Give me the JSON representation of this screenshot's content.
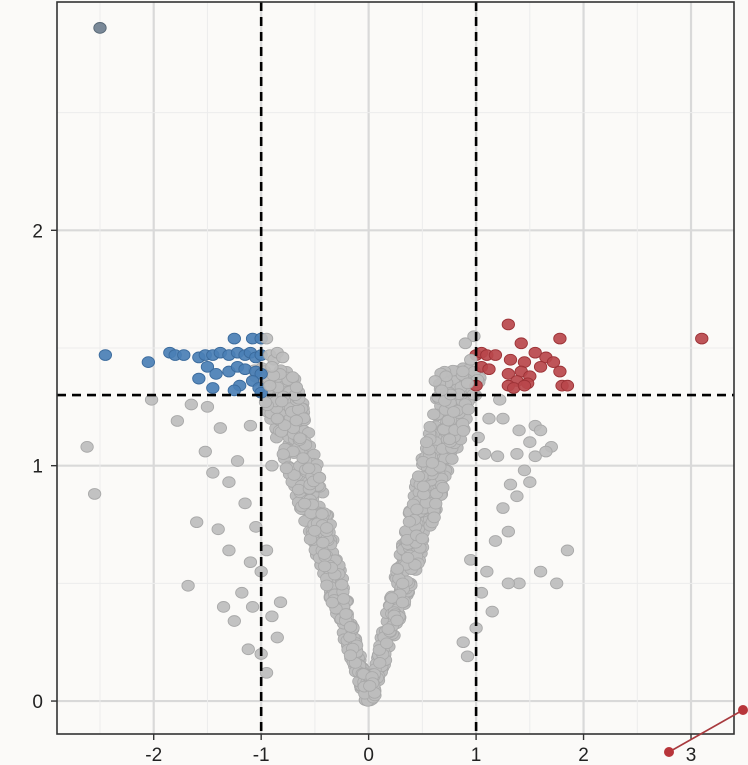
{
  "chart_data": {
    "type": "scatter",
    "title": "",
    "xlabel": "",
    "ylabel": "",
    "xlim": [
      -2.9,
      3.4
    ],
    "ylim": [
      -0.14,
      2.97
    ],
    "x_ticks": [
      -2,
      -1,
      0,
      1,
      2,
      3
    ],
    "y_ticks": [
      0,
      1,
      2
    ],
    "x_tick_labels": [
      "-2",
      "-1",
      "0",
      "1",
      "2",
      "3"
    ],
    "y_tick_labels": [
      "0",
      "1",
      "2"
    ],
    "grid": true,
    "legend": "none",
    "thresholds": {
      "fold_change": [
        -1,
        1
      ],
      "significance": 1.3
    },
    "colors": {
      "background": "#fbfaf8",
      "grid": "#d9d9d9",
      "axis": "#333333",
      "threshold_line": "#000000",
      "down": "#4a7fb5",
      "down_border": "#3a6a9c",
      "up": "#b8474b",
      "up_border": "#9c3236",
      "not_significant": "#bdbdbd",
      "not_significant_border": "#a8a8a8",
      "outlier_dark": "#6f7f8f"
    },
    "series": [
      {
        "group": "down",
        "points": [
          [
            -2.5,
            2.86
          ],
          [
            -2.45,
            1.47
          ],
          [
            -2.05,
            1.44
          ],
          [
            -1.85,
            1.48
          ],
          [
            -1.8,
            1.47
          ],
          [
            -1.72,
            1.47
          ],
          [
            -1.58,
            1.46
          ],
          [
            -1.52,
            1.47
          ],
          [
            -1.45,
            1.47
          ],
          [
            -1.38,
            1.48
          ],
          [
            -1.3,
            1.47
          ],
          [
            -1.22,
            1.48
          ],
          [
            -1.15,
            1.47
          ],
          [
            -1.1,
            1.48
          ],
          [
            -1.05,
            1.46
          ],
          [
            -1.0,
            1.47
          ],
          [
            -1.25,
            1.54
          ],
          [
            -1.08,
            1.54
          ],
          [
            -1.0,
            1.54
          ],
          [
            -1.5,
            1.42
          ],
          [
            -1.42,
            1.39
          ],
          [
            -1.3,
            1.4
          ],
          [
            -1.22,
            1.42
          ],
          [
            -1.15,
            1.41
          ],
          [
            -1.05,
            1.4
          ],
          [
            -1.0,
            1.39
          ],
          [
            -1.58,
            1.37
          ],
          [
            -1.45,
            1.33
          ],
          [
            -1.2,
            1.34
          ],
          [
            -1.08,
            1.36
          ],
          [
            -1.02,
            1.33
          ],
          [
            -1.25,
            1.32
          ],
          [
            -1.0,
            1.31
          ]
        ]
      },
      {
        "group": "up",
        "points": [
          [
            3.1,
            1.54
          ],
          [
            1.3,
            1.6
          ],
          [
            1.42,
            1.52
          ],
          [
            1.78,
            1.54
          ],
          [
            1.0,
            1.47
          ],
          [
            1.05,
            1.48
          ],
          [
            1.1,
            1.47
          ],
          [
            1.18,
            1.47
          ],
          [
            1.32,
            1.45
          ],
          [
            1.45,
            1.44
          ],
          [
            1.55,
            1.48
          ],
          [
            1.65,
            1.46
          ],
          [
            1.6,
            1.42
          ],
          [
            1.72,
            1.44
          ],
          [
            1.05,
            1.42
          ],
          [
            1.12,
            1.41
          ],
          [
            1.3,
            1.39
          ],
          [
            1.42,
            1.4
          ],
          [
            1.5,
            1.38
          ],
          [
            1.38,
            1.36
          ],
          [
            1.48,
            1.35
          ],
          [
            1.3,
            1.34
          ],
          [
            1.35,
            1.33
          ],
          [
            1.78,
            1.4
          ],
          [
            1.8,
            1.34
          ],
          [
            1.85,
            1.34
          ],
          [
            1.0,
            1.34
          ],
          [
            1.45,
            1.34
          ]
        ]
      },
      {
        "group": "not_significant",
        "points": [
          [
            -2.62,
            1.08
          ],
          [
            -2.55,
            0.88
          ],
          [
            -2.02,
            1.28
          ],
          [
            -1.68,
            0.49
          ],
          [
            -1.65,
            1.26
          ],
          [
            -1.78,
            1.19
          ],
          [
            -1.52,
            1.06
          ],
          [
            -1.6,
            0.76
          ],
          [
            -1.4,
            0.73
          ],
          [
            -1.3,
            0.64
          ],
          [
            -1.35,
            0.4
          ],
          [
            -1.25,
            0.34
          ],
          [
            -1.45,
            0.97
          ],
          [
            -1.38,
            1.16
          ],
          [
            -1.5,
            1.25
          ],
          [
            -1.3,
            0.93
          ],
          [
            -1.15,
            0.84
          ],
          [
            -1.1,
            0.59
          ],
          [
            -1.08,
            0.4
          ],
          [
            -1.18,
            0.46
          ],
          [
            -1.22,
            1.02
          ],
          [
            -1.1,
            1.17
          ],
          [
            -1.05,
            0.74
          ],
          [
            -1.0,
            0.55
          ],
          [
            -1.0,
            0.2
          ],
          [
            -0.95,
            0.64
          ],
          [
            -0.9,
            0.36
          ],
          [
            -0.85,
            0.27
          ],
          [
            -0.82,
            0.42
          ],
          [
            -1.12,
            0.22
          ],
          [
            -0.95,
            0.12
          ],
          [
            -0.9,
            1.0
          ],
          [
            -0.85,
            1.2
          ],
          [
            -0.92,
            1.34
          ],
          [
            1.85,
            0.64
          ],
          [
            1.55,
            1.17
          ],
          [
            1.6,
            1.15
          ],
          [
            1.7,
            1.08
          ],
          [
            1.55,
            1.04
          ],
          [
            1.65,
            1.06
          ],
          [
            1.45,
            0.98
          ],
          [
            1.5,
            0.93
          ],
          [
            1.38,
            0.87
          ],
          [
            1.32,
            0.92
          ],
          [
            1.25,
            0.82
          ],
          [
            1.3,
            0.72
          ],
          [
            1.2,
            1.04
          ],
          [
            1.18,
            0.68
          ],
          [
            1.4,
            0.5
          ],
          [
            1.3,
            0.5
          ],
          [
            1.1,
            0.55
          ],
          [
            1.05,
            0.46
          ],
          [
            1.15,
            0.38
          ],
          [
            1.0,
            0.31
          ],
          [
            0.92,
            0.19
          ],
          [
            0.88,
            0.25
          ],
          [
            0.95,
            0.6
          ],
          [
            1.02,
            1.12
          ],
          [
            1.08,
            1.05
          ],
          [
            1.12,
            1.2
          ],
          [
            1.25,
            1.2
          ],
          [
            1.38,
            1.05
          ],
          [
            1.5,
            1.1
          ],
          [
            1.22,
            1.28
          ],
          [
            0.92,
            1.35
          ],
          [
            0.68,
            1.32
          ],
          [
            0.72,
            1.38
          ],
          [
            0.62,
            1.36
          ],
          [
            0.95,
            1.45
          ],
          [
            0.98,
            1.55
          ],
          [
            0.9,
            1.52
          ],
          [
            1.4,
            1.15
          ],
          [
            1.6,
            0.55
          ],
          [
            1.75,
            0.5
          ],
          [
            -0.92,
            1.47
          ],
          [
            -0.88,
            1.45
          ],
          [
            -0.85,
            1.48
          ],
          [
            -0.8,
            1.46
          ],
          [
            -0.95,
            1.54
          ],
          [
            -0.9,
            1.42
          ]
        ]
      }
    ]
  }
}
